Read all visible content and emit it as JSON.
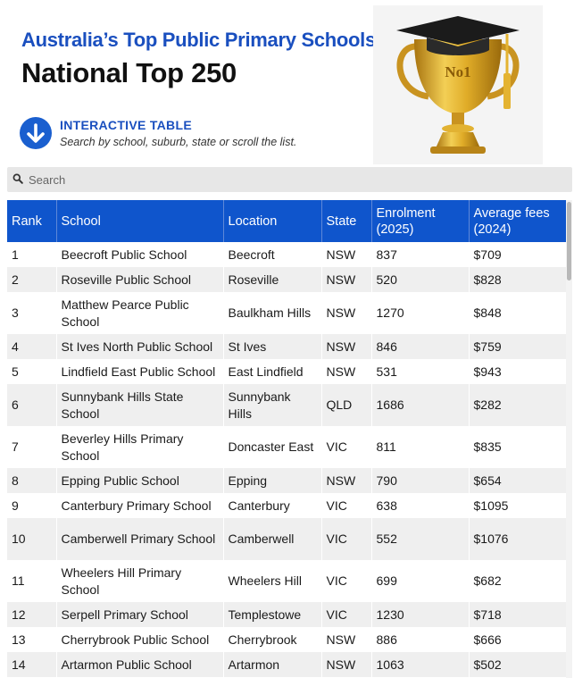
{
  "header": {
    "title_line1": "Australia’s Top Public Primary Schools",
    "title_line2": "National Top 250",
    "interactive_label": "INTERACTIVE TABLE",
    "interactive_sub": "Search by school, suburb, state or scroll the list.",
    "trophy_text": "No1"
  },
  "search": {
    "placeholder": "Search",
    "value": ""
  },
  "table": {
    "columns": [
      "Rank",
      "School",
      "Location",
      "State",
      "Enrolment (2025)",
      "Average fees (2024)"
    ],
    "rows": [
      {
        "rank": "1",
        "school": "Beecroft Public School",
        "location": "Beecroft",
        "state": "NSW",
        "enrolment": "837",
        "fees": "$709"
      },
      {
        "rank": "2",
        "school": "Roseville Public School",
        "location": "Roseville",
        "state": "NSW",
        "enrolment": "520",
        "fees": "$828"
      },
      {
        "rank": "3",
        "school": "Matthew Pearce Public School",
        "location": "Baulkham Hills",
        "state": "NSW",
        "enrolment": "1270",
        "fees": "$848"
      },
      {
        "rank": "4",
        "school": "St Ives North Public School",
        "location": "St Ives",
        "state": "NSW",
        "enrolment": "846",
        "fees": "$759"
      },
      {
        "rank": "5",
        "school": "Lindfield East Public School",
        "location": "East Lindfield",
        "state": "NSW",
        "enrolment": "531",
        "fees": "$943"
      },
      {
        "rank": "6",
        "school": "Sunnybank Hills State School",
        "location": "Sunnybank Hills",
        "state": "QLD",
        "enrolment": "1686",
        "fees": "$282"
      },
      {
        "rank": "7",
        "school": "Beverley Hills Primary School",
        "location": "Doncaster East",
        "state": "VIC",
        "enrolment": "811",
        "fees": "$835"
      },
      {
        "rank": "8",
        "school": "Epping Public School",
        "location": "Epping",
        "state": "NSW",
        "enrolment": "790",
        "fees": "$654"
      },
      {
        "rank": "9",
        "school": "Canterbury Primary School",
        "location": "Canterbury",
        "state": "VIC",
        "enrolment": "638",
        "fees": "$1095"
      },
      {
        "rank": "10",
        "school": "Camberwell Primary School",
        "location": "Camberwell",
        "state": "VIC",
        "enrolment": "552",
        "fees": "$1076"
      },
      {
        "rank": "11",
        "school": "Wheelers Hill Primary School",
        "location": "Wheelers Hill",
        "state": "VIC",
        "enrolment": "699",
        "fees": "$682"
      },
      {
        "rank": "12",
        "school": "Serpell Primary School",
        "location": "Templestowe",
        "state": "VIC",
        "enrolment": "1230",
        "fees": "$718"
      },
      {
        "rank": "13",
        "school": "Cherrybrook Public School",
        "location": "Cherrybrook",
        "state": "NSW",
        "enrolment": "886",
        "fees": "$666"
      },
      {
        "rank": "14",
        "school": "Artarmon Public School",
        "location": "Artarmon",
        "state": "NSW",
        "enrolment": "1063",
        "fees": "$502"
      }
    ]
  },
  "colors": {
    "accent_blue": "#1a4fbf",
    "header_blue": "#0f55cc",
    "row_alt": "#efefef",
    "trophy_gold": "#d9a520"
  },
  "icons": [
    "arrow-down-circle-icon",
    "search-icon",
    "trophy-icon",
    "graduation-cap-icon"
  ]
}
